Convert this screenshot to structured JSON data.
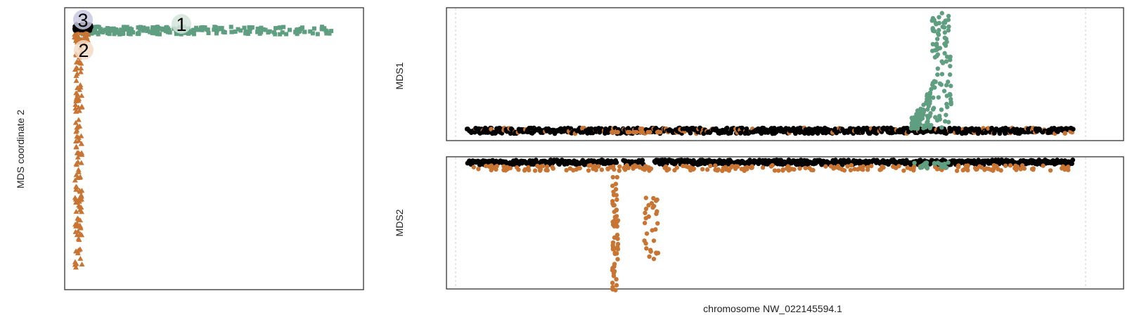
{
  "colors": {
    "cluster1": "#5f9e80",
    "cluster2": "#c87533",
    "cluster3": "#000000",
    "marker2_bg": "#f3dcc6",
    "marker3_bg": "#c9c9e0",
    "marker1_bg": "#d4e4da"
  },
  "chart_data": [
    {
      "type": "scatter",
      "title": "",
      "xlabel": "",
      "ylabel": "MDS coordinate 2",
      "ylim": [
        0,
        1
      ],
      "xlim": [
        0,
        1
      ],
      "grid": false,
      "series": [
        {
          "name": "1",
          "points": [
            [
              0.04,
              0.05
            ],
            [
              0.08,
              0.05
            ],
            [
              0.12,
              0.055
            ],
            [
              0.18,
              0.058
            ],
            [
              0.22,
              0.055
            ],
            [
              0.26,
              0.058
            ],
            [
              0.3,
              0.06
            ],
            [
              0.35,
              0.062
            ],
            [
              0.4,
              0.06
            ],
            [
              0.45,
              0.065
            ],
            [
              0.5,
              0.062
            ],
            [
              0.55,
              0.065
            ],
            [
              0.6,
              0.06
            ],
            [
              0.65,
              0.063
            ],
            [
              0.7,
              0.06
            ],
            [
              0.75,
              0.062
            ],
            [
              0.8,
              0.063
            ],
            [
              0.85,
              0.065
            ],
            [
              0.9,
              0.062
            ],
            [
              0.95,
              0.065
            ]
          ]
        },
        {
          "name": "2",
          "points": [
            [
              0.005,
              0.1
            ],
            [
              0.01,
              0.15
            ],
            [
              0.015,
              0.22
            ],
            [
              0.02,
              0.3
            ],
            [
              0.01,
              0.38
            ],
            [
              0.02,
              0.45
            ],
            [
              0.015,
              0.5
            ],
            [
              0.025,
              0.55
            ],
            [
              0.01,
              0.6
            ],
            [
              0.02,
              0.65
            ],
            [
              0.015,
              0.7
            ],
            [
              0.01,
              0.75
            ],
            [
              0.02,
              0.8
            ],
            [
              0.015,
              0.85
            ],
            [
              0.01,
              0.9
            ],
            [
              0.015,
              0.95
            ]
          ]
        },
        {
          "name": "3",
          "points": [
            [
              0.01,
              0.04
            ],
            [
              0.02,
              0.045
            ],
            [
              0.03,
              0.04
            ],
            [
              0.04,
              0.045
            ]
          ]
        }
      ],
      "labels": [
        {
          "text": "1",
          "x": 0.38,
          "y": 0.055
        },
        {
          "text": "2",
          "x": 0.065,
          "y": 0.16
        },
        {
          "text": "3",
          "x": 0.055,
          "y": 0.04
        }
      ]
    },
    {
      "type": "scatter",
      "ylabel": "MDS1",
      "series": [
        {
          "name": "1",
          "description": "green peak near position 0.78"
        },
        {
          "name": "2",
          "description": "orange scattered baseline"
        },
        {
          "name": "3",
          "description": "black baseline"
        }
      ]
    },
    {
      "type": "scatter",
      "ylabel": "MDS2",
      "xlabel": "chromosome NW_022145594.1",
      "series": [
        {
          "name": "2",
          "description": "orange dips near positions 0.25 and 0.31"
        },
        {
          "name": "3",
          "description": "black baseline"
        }
      ]
    }
  ]
}
